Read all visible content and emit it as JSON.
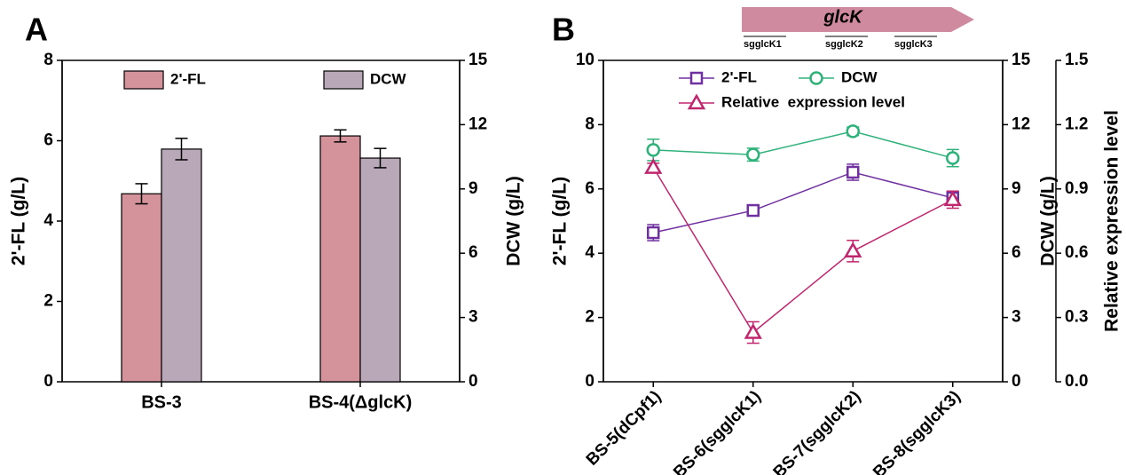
{
  "chart_data": [
    {
      "type": "bar",
      "panel_label": "A",
      "categories": [
        "BS-3",
        "BS-4(ΔglcK)"
      ],
      "y_label": "2'-FL (g/L)",
      "y2_label": "DCW (g/L)",
      "ylim": [
        0,
        8
      ],
      "yticks": [
        0,
        2,
        4,
        6,
        8
      ],
      "y2lim": [
        0,
        15
      ],
      "y2ticks": [
        0,
        3,
        6,
        9,
        12,
        15
      ],
      "series": [
        {
          "name": "2'-FL",
          "color": "#d4929b",
          "values": [
            4.68,
            6.12
          ],
          "errors": [
            0.25,
            0.15
          ]
        },
        {
          "name": "DCW",
          "color": "#b8a8b8",
          "axis": "y2",
          "values": [
            10.86,
            10.44
          ],
          "errors": [
            0.5,
            0.45
          ]
        }
      ]
    },
    {
      "type": "line",
      "panel_label": "B",
      "gene_label": "glcK",
      "sg_labels": [
        "sgglcK1",
        "sgglcK2",
        "sgglcK3"
      ],
      "categories": [
        "BS-5(dCpf1)",
        "BS-6(sgglcK1)",
        "BS-7(sgglcK2)",
        "BS-8(sgglcK3)"
      ],
      "y_label": "2'-FL (g/L)",
      "y2_label": "DCW (g/L)",
      "y3_label": "Relative  expression level",
      "ylim": [
        0,
        10
      ],
      "yticks": [
        0,
        2,
        4,
        6,
        8,
        10
      ],
      "y2lim": [
        0,
        15
      ],
      "y2ticks": [
        0,
        3,
        6,
        9,
        12,
        15
      ],
      "y3lim": [
        0,
        1.5
      ],
      "y3ticks": [
        {
          "value": 0,
          "label": "0.0"
        },
        0.3,
        0.6,
        0.9,
        1.2,
        1.5
      ],
      "series": [
        {
          "name": "2'-FL",
          "color": "#7030a0",
          "marker": "square",
          "values": [
            4.64,
            5.33,
            6.52,
            5.72
          ],
          "errors": [
            0.25,
            0.1,
            0.25,
            0.2
          ]
        },
        {
          "name": "DCW",
          "color": "#2fb27a",
          "marker": "circle",
          "axis": "y2",
          "values": [
            10.82,
            10.6,
            11.69,
            10.44
          ],
          "errors": [
            0.5,
            0.3,
            0.2,
            0.4
          ]
        },
        {
          "name": "Relative  expression level",
          "color": "#c0266e",
          "marker": "triangle",
          "axis": "y3",
          "values": [
            1.0,
            0.23,
            0.61,
            0.85
          ],
          "errors": [
            0.02,
            0.05,
            0.05,
            0.04
          ]
        }
      ]
    }
  ]
}
